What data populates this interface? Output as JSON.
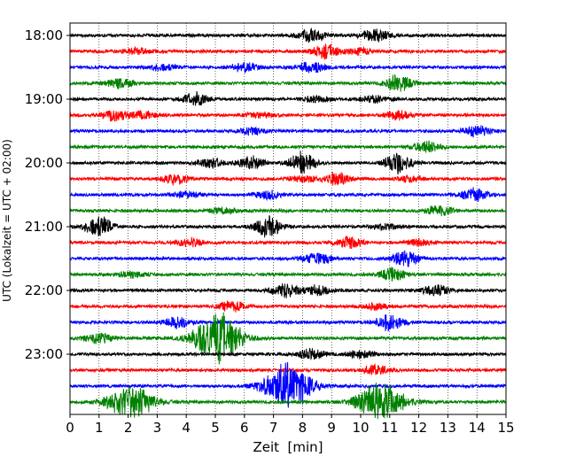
{
  "chart_data": {
    "type": "line",
    "title": "",
    "xlabel": "Zeit  [min]",
    "ylabel": "UTC (Lokalzeit = UTC + 02:00)",
    "xlim": [
      0,
      15
    ],
    "x_ticks": [
      0,
      1,
      2,
      3,
      4,
      5,
      6,
      7,
      8,
      9,
      10,
      11,
      12,
      13,
      14,
      15
    ],
    "y_tick_labels": [
      "18:00",
      "19:00",
      "20:00",
      "21:00",
      "22:00",
      "23:00"
    ],
    "grid": "vertical dotted lines at each minute",
    "trace_colors": [
      "#000000",
      "#ff0000",
      "#0000ff",
      "#008000"
    ],
    "trace_interval_minutes": 15,
    "rows": [
      {
        "start": "18:00",
        "color": "#000000",
        "bursts": [
          {
            "t": 8.3,
            "amp": 6
          },
          {
            "t": 10.5,
            "amp": 6
          }
        ]
      },
      {
        "start": "18:15",
        "color": "#ff0000",
        "bursts": [
          {
            "t": 2.3,
            "amp": 3
          },
          {
            "t": 8.8,
            "amp": 7
          },
          {
            "t": 10.0,
            "amp": 3
          }
        ]
      },
      {
        "start": "18:30",
        "color": "#0000ff",
        "bursts": [
          {
            "t": 3.2,
            "amp": 3
          },
          {
            "t": 6.0,
            "amp": 4
          },
          {
            "t": 8.3,
            "amp": 6
          }
        ]
      },
      {
        "start": "18:45",
        "color": "#008000",
        "bursts": [
          {
            "t": 1.7,
            "amp": 5
          },
          {
            "t": 11.3,
            "amp": 8
          }
        ]
      },
      {
        "start": "19:00",
        "color": "#000000",
        "bursts": [
          {
            "t": 4.3,
            "amp": 6
          },
          {
            "t": 8.5,
            "amp": 3
          },
          {
            "t": 10.5,
            "amp": 3
          }
        ]
      },
      {
        "start": "19:15",
        "color": "#ff0000",
        "bursts": [
          {
            "t": 1.5,
            "amp": 5
          },
          {
            "t": 2.5,
            "amp": 4
          },
          {
            "t": 6.5,
            "amp": 3
          },
          {
            "t": 11.3,
            "amp": 5
          }
        ]
      },
      {
        "start": "19:30",
        "color": "#0000ff",
        "bursts": [
          {
            "t": 6.3,
            "amp": 3
          },
          {
            "t": 14.0,
            "amp": 5
          }
        ]
      },
      {
        "start": "19:45",
        "color": "#008000",
        "bursts": [
          {
            "t": 12.3,
            "amp": 6
          }
        ]
      },
      {
        "start": "20:00",
        "color": "#000000",
        "bursts": [
          {
            "t": 4.8,
            "amp": 5
          },
          {
            "t": 6.2,
            "amp": 6
          },
          {
            "t": 8.0,
            "amp": 10
          },
          {
            "t": 11.3,
            "amp": 10
          }
        ]
      },
      {
        "start": "20:15",
        "color": "#ff0000",
        "bursts": [
          {
            "t": 3.6,
            "amp": 5
          },
          {
            "t": 8.0,
            "amp": 3
          },
          {
            "t": 9.2,
            "amp": 6
          },
          {
            "t": 11.7,
            "amp": 3
          }
        ]
      },
      {
        "start": "20:30",
        "color": "#0000ff",
        "bursts": [
          {
            "t": 4.0,
            "amp": 3
          },
          {
            "t": 6.8,
            "amp": 4
          },
          {
            "t": 13.9,
            "amp": 6
          }
        ]
      },
      {
        "start": "20:45",
        "color": "#008000",
        "bursts": [
          {
            "t": 5.3,
            "amp": 3
          },
          {
            "t": 12.7,
            "amp": 5
          }
        ]
      },
      {
        "start": "21:00",
        "color": "#000000",
        "bursts": [
          {
            "t": 1.0,
            "amp": 10
          },
          {
            "t": 6.8,
            "amp": 10
          },
          {
            "t": 10.8,
            "amp": 3
          }
        ]
      },
      {
        "start": "21:15",
        "color": "#ff0000",
        "bursts": [
          {
            "t": 4.1,
            "amp": 4
          },
          {
            "t": 9.6,
            "amp": 5
          },
          {
            "t": 12.0,
            "amp": 3
          }
        ]
      },
      {
        "start": "21:30",
        "color": "#0000ff",
        "bursts": [
          {
            "t": 8.5,
            "amp": 6
          },
          {
            "t": 11.5,
            "amp": 8
          }
        ]
      },
      {
        "start": "21:45",
        "color": "#008000",
        "bursts": [
          {
            "t": 2.1,
            "amp": 3
          },
          {
            "t": 11.1,
            "amp": 6
          }
        ]
      },
      {
        "start": "22:00",
        "color": "#000000",
        "bursts": [
          {
            "t": 7.4,
            "amp": 6
          },
          {
            "t": 8.5,
            "amp": 5
          },
          {
            "t": 12.6,
            "amp": 5
          }
        ]
      },
      {
        "start": "22:15",
        "color": "#ff0000",
        "bursts": [
          {
            "t": 5.6,
            "amp": 5
          },
          {
            "t": 10.5,
            "amp": 3
          }
        ]
      },
      {
        "start": "22:30",
        "color": "#0000ff",
        "bursts": [
          {
            "t": 3.7,
            "amp": 6
          },
          {
            "t": 11.0,
            "amp": 8
          }
        ]
      },
      {
        "start": "22:45",
        "color": "#008000",
        "bursts": [
          {
            "t": 1.0,
            "amp": 5
          },
          {
            "t": 5.1,
            "amp": 26
          }
        ]
      },
      {
        "start": "23:00",
        "color": "#000000",
        "bursts": [
          {
            "t": 8.3,
            "amp": 5
          },
          {
            "t": 10.0,
            "amp": 4
          }
        ]
      },
      {
        "start": "23:15",
        "color": "#ff0000",
        "bursts": [
          {
            "t": 10.5,
            "amp": 5
          }
        ]
      },
      {
        "start": "23:30",
        "color": "#0000ff",
        "bursts": [
          {
            "t": 7.5,
            "amp": 24
          }
        ]
      },
      {
        "start": "23:45",
        "color": "#008000",
        "bursts": [
          {
            "t": 2.1,
            "amp": 16
          },
          {
            "t": 10.7,
            "amp": 18
          }
        ]
      }
    ]
  }
}
